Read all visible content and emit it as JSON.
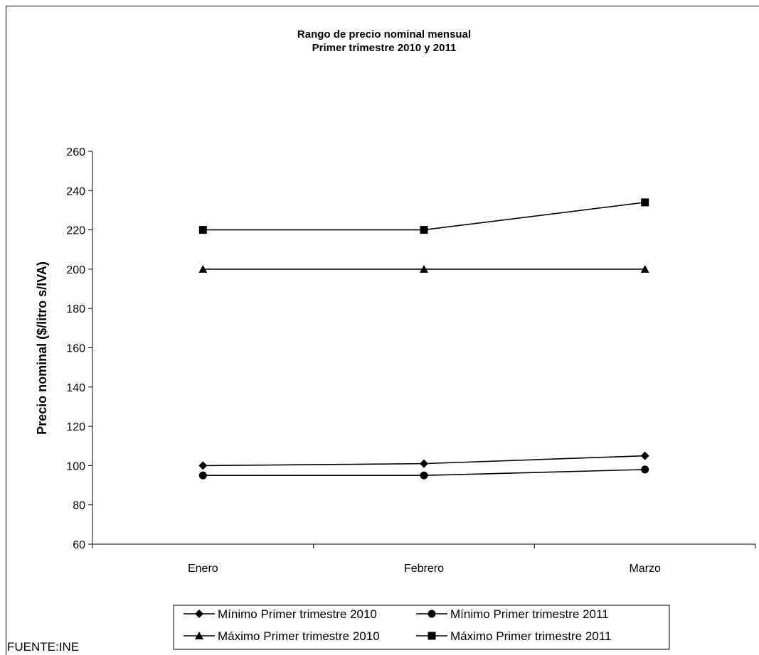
{
  "chart_data": {
    "type": "line",
    "title": [
      "Rango de precio nominal mensual",
      "Primer trimestre 2010 y 2011"
    ],
    "ylabel": "Precio nominal ($/litro s/IVA)",
    "xlabel": "",
    "categories": [
      "Enero",
      "Febrero",
      "Marzo"
    ],
    "ylim": [
      60,
      260
    ],
    "yticks": [
      60,
      80,
      100,
      120,
      140,
      160,
      180,
      200,
      220,
      240,
      260
    ],
    "grid": false,
    "legend_position": "bottom",
    "series": [
      {
        "name": "Mínimo Primer trimestre 2010",
        "marker": "diamond",
        "values": [
          100,
          101,
          105
        ]
      },
      {
        "name": "Mínimo Primer trimestre 2011",
        "marker": "circle",
        "values": [
          95,
          95,
          98
        ]
      },
      {
        "name": "Máximo Primer trimestre 2010",
        "marker": "triangle",
        "values": [
          200,
          200,
          200
        ]
      },
      {
        "name": "Máximo Primer trimestre 2011",
        "marker": "square",
        "values": [
          220,
          220,
          234
        ]
      }
    ],
    "line_color": "#000000"
  },
  "source_note": "FUENTE:INE"
}
